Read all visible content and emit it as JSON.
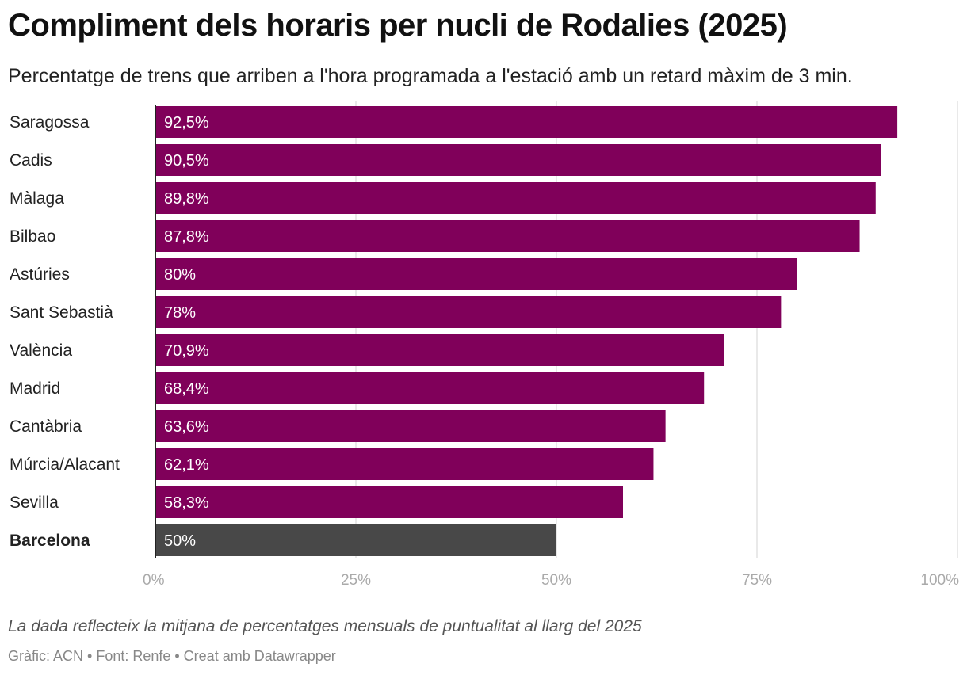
{
  "title": "Compliment dels horaris per nucli de Rodalies (2025)",
  "subtitle": "Percentatge de trens que arriben a l'hora programada a l'estació amb un retard màxim de 3 min.",
  "note": "La dada reflecteix la mitjana de percentatges mensuals de puntualitat al llarg del 2025",
  "credits": "Gràfic: ACN • Font: Renfe • Creat amb Datawrapper",
  "colors": {
    "bar": "#80005a",
    "highlight": "#484848",
    "grid": "#e2e2e2",
    "axis": "#222222"
  },
  "chart_data": {
    "type": "bar",
    "orientation": "horizontal",
    "categories": [
      "Saragossa",
      "Cadis",
      "Màlaga",
      "Bilbao",
      "Astúries",
      "Sant Sebastià",
      "València",
      "Madrid",
      "Cantàbria",
      "Múrcia/Alacant",
      "Sevilla",
      "Barcelona"
    ],
    "values": [
      92.5,
      90.5,
      89.8,
      87.8,
      80,
      78,
      70.9,
      68.4,
      63.6,
      62.1,
      58.3,
      50
    ],
    "value_labels": [
      "92,5%",
      "90,5%",
      "89,8%",
      "87,8%",
      "80%",
      "78%",
      "70,9%",
      "68,4%",
      "63,6%",
      "62,1%",
      "58,3%",
      "50%"
    ],
    "highlight": "Barcelona",
    "xlim": [
      0,
      100
    ],
    "ticks": [
      0,
      25,
      50,
      75,
      100
    ],
    "tick_labels": [
      "0%",
      "25%",
      "50%",
      "75%",
      "100%"
    ],
    "grid": true,
    "xlabel": "",
    "ylabel": ""
  }
}
